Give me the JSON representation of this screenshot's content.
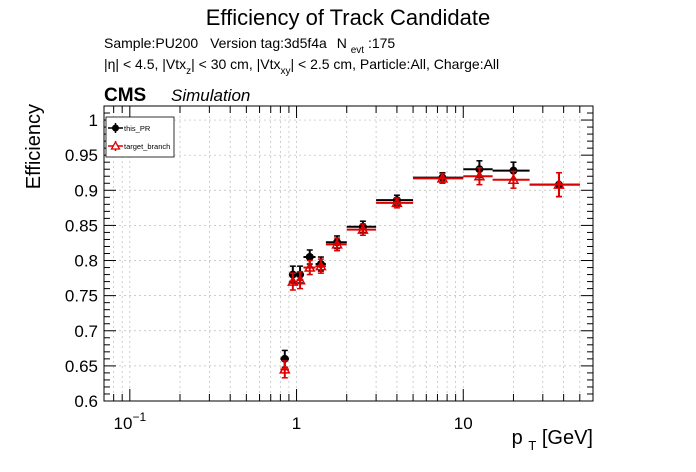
{
  "chart_data": {
    "type": "scatter",
    "title": "Efficiency of Track Candidate",
    "info": {
      "sample": "Sample:PU200",
      "version": "Version tag:3d5f4a",
      "nevt_base": "N",
      "nevt_sub": "evt",
      "nevt_value": ":175",
      "cuts": [
        {
          "text": "|η| < 4.5, |Vtx",
          "sub": ""
        },
        {
          "text": "z",
          "sub": "sub"
        },
        {
          "text": "| < 30 cm, |Vtx",
          "sub": ""
        },
        {
          "text": "xy",
          "sub": "sub"
        },
        {
          "text": "| < 2.5 cm, Particle:All, Charge:All",
          "sub": ""
        }
      ]
    },
    "cms_label": "CMS",
    "cms_sublabel": "Simulation",
    "xlabel": {
      "base": "p",
      "sub": "T",
      "rest": " [GeV]"
    },
    "ylabel": "Efficiency",
    "xscale": "log",
    "xlim": [
      0.07,
      60
    ],
    "ylim": [
      0.6,
      1.02
    ],
    "x_tick_labels": [
      {
        "value": 0.1,
        "label": "10",
        "sup": "−1"
      },
      {
        "value": 1,
        "label": "1",
        "sup": ""
      },
      {
        "value": 10,
        "label": "10",
        "sup": ""
      }
    ],
    "y_ticks": [
      0.6,
      0.65,
      0.7,
      0.75,
      0.8,
      0.85,
      0.9,
      0.95,
      1
    ],
    "y_tick_labels": [
      "0.6",
      "0.65",
      "0.7",
      "0.75",
      "0.8",
      "0.85",
      "0.9",
      "0.95",
      "1"
    ],
    "grid": true,
    "legend_position": "top-left",
    "series": [
      {
        "name": "this_PR",
        "color": "#000000",
        "marker": "filled-circle",
        "points": [
          {
            "x": 0.85,
            "xlo": 0.8,
            "xhi": 0.9,
            "y": 0.66,
            "err": 0.012
          },
          {
            "x": 0.95,
            "xlo": 0.9,
            "xhi": 1.0,
            "y": 0.78,
            "err": 0.012
          },
          {
            "x": 1.05,
            "xlo": 1.0,
            "xhi": 1.1,
            "y": 0.78,
            "err": 0.012
          },
          {
            "x": 1.2,
            "xlo": 1.1,
            "xhi": 1.3,
            "y": 0.805,
            "err": 0.01
          },
          {
            "x": 1.4,
            "xlo": 1.3,
            "xhi": 1.5,
            "y": 0.795,
            "err": 0.01
          },
          {
            "x": 1.75,
            "xlo": 1.5,
            "xhi": 2.0,
            "y": 0.826,
            "err": 0.009
          },
          {
            "x": 2.5,
            "xlo": 2.0,
            "xhi": 3.0,
            "y": 0.848,
            "err": 0.008
          },
          {
            "x": 4.0,
            "xlo": 3.0,
            "xhi": 5.0,
            "y": 0.886,
            "err": 0.007
          },
          {
            "x": 7.5,
            "xlo": 5.0,
            "xhi": 10.0,
            "y": 0.918,
            "err": 0.007
          },
          {
            "x": 12.5,
            "xlo": 10.0,
            "xhi": 15.0,
            "y": 0.93,
            "err": 0.012
          },
          {
            "x": 20.0,
            "xlo": 15.0,
            "xhi": 25.0,
            "y": 0.928,
            "err": 0.012
          },
          {
            "x": 37.5,
            "xlo": 25.0,
            "xhi": 50.0,
            "y": 0.908,
            "err": 0.017
          }
        ]
      },
      {
        "name": "target_branch",
        "color": "#dd0000",
        "marker": "open-triangle",
        "points": [
          {
            "x": 0.85,
            "xlo": 0.8,
            "xhi": 0.9,
            "y": 0.645,
            "err": 0.012
          },
          {
            "x": 0.95,
            "xlo": 0.9,
            "xhi": 1.0,
            "y": 0.77,
            "err": 0.012
          },
          {
            "x": 1.05,
            "xlo": 1.0,
            "xhi": 1.1,
            "y": 0.772,
            "err": 0.012
          },
          {
            "x": 1.2,
            "xlo": 1.1,
            "xhi": 1.3,
            "y": 0.79,
            "err": 0.01
          },
          {
            "x": 1.4,
            "xlo": 1.3,
            "xhi": 1.5,
            "y": 0.792,
            "err": 0.01
          },
          {
            "x": 1.75,
            "xlo": 1.5,
            "xhi": 2.0,
            "y": 0.823,
            "err": 0.009
          },
          {
            "x": 2.5,
            "xlo": 2.0,
            "xhi": 3.0,
            "y": 0.844,
            "err": 0.008
          },
          {
            "x": 4.0,
            "xlo": 3.0,
            "xhi": 5.0,
            "y": 0.882,
            "err": 0.007
          },
          {
            "x": 7.5,
            "xlo": 5.0,
            "xhi": 10.0,
            "y": 0.917,
            "err": 0.007
          },
          {
            "x": 12.5,
            "xlo": 10.0,
            "xhi": 15.0,
            "y": 0.92,
            "err": 0.012
          },
          {
            "x": 20.0,
            "xlo": 15.0,
            "xhi": 25.0,
            "y": 0.915,
            "err": 0.012
          },
          {
            "x": 37.5,
            "xlo": 25.0,
            "xhi": 50.0,
            "y": 0.908,
            "err": 0.017
          }
        ]
      }
    ]
  }
}
